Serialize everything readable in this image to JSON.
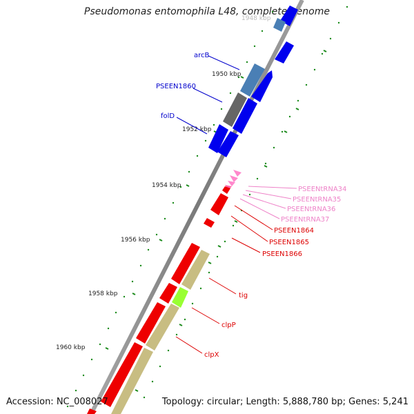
{
  "title": "Pseudomonas entomophila L48, complete genome",
  "footer": {
    "accession": "Accession: NC_008027",
    "stats": "Topology: circular; Length: 5,888,780 bp; Genes: 5,241"
  },
  "ticks": [
    {
      "label": "1950 kbp"
    },
    {
      "label": "1952 kbp"
    },
    {
      "label": "1954 kbp"
    },
    {
      "label": "1956 kbp"
    },
    {
      "label": "1958 kbp"
    },
    {
      "label": "1960 kbp"
    }
  ],
  "genes_forward": [
    {
      "name": "arcB",
      "color": "#0000cc"
    },
    {
      "name": "PSEEN1860",
      "color": "#0000cc"
    },
    {
      "name": "folD",
      "color": "#0000cc"
    }
  ],
  "genes_reverse": [
    {
      "name": "PSEENtRNA34",
      "color": "#ee82c8"
    },
    {
      "name": "PSEENtRNA35",
      "color": "#ee82c8"
    },
    {
      "name": "PSEENtRNA36",
      "color": "#ee82c8"
    },
    {
      "name": "PSEENtRNA37",
      "color": "#ee82c8"
    },
    {
      "name": "PSEEN1864",
      "color": "#dd0000"
    },
    {
      "name": "PSEEN1865",
      "color": "#dd0000"
    },
    {
      "name": "PSEEN1866",
      "color": "#dd0000"
    },
    {
      "name": "tig",
      "color": "#dd0000"
    },
    {
      "name": "clpP",
      "color": "#dd0000"
    },
    {
      "name": "clpX",
      "color": "#dd0000"
    }
  ],
  "colors": {
    "backbone": "#808080",
    "cds_forward": "#0000ee",
    "cds_reverse": "#ee0000",
    "trna": "#ff88cc",
    "cog_blue": "#4a7fb5",
    "cog_gray": "#666666",
    "cog_khaki": "#c8bd82",
    "cog_lime": "#99ff33",
    "gc_skew": "#1a8a1a"
  }
}
